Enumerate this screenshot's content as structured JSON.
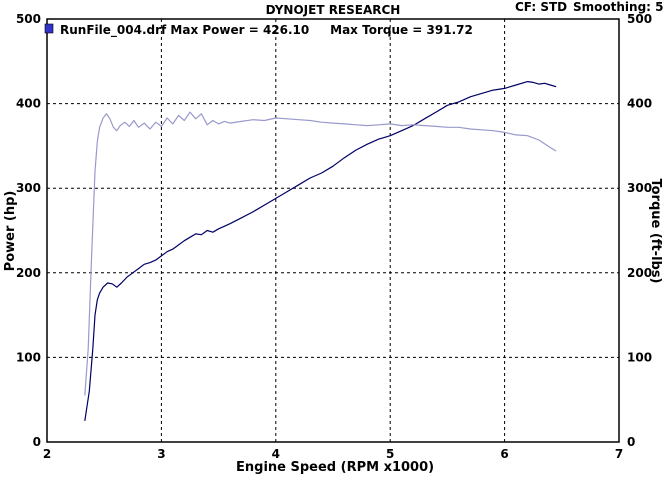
{
  "header": {
    "title": "DYNOJET RESEARCH",
    "cf": "CF: STD",
    "smoothing": "Smoothing: 5"
  },
  "legend": {
    "text": "RunFile_004.drf Max Power = 426.10     Max Torque = 391.72",
    "swatch_color": "#3333cc"
  },
  "chart_data": {
    "type": "line",
    "title": "DYNOJET RESEARCH",
    "xlabel": "Engine Speed (RPM x1000)",
    "ylabel": "Power (hp)",
    "y2label": "Torque (ft-lbs)",
    "xlim": [
      2,
      7
    ],
    "ylim": [
      0,
      500
    ],
    "y2lim": [
      0,
      500
    ],
    "xticks": [
      "2",
      "3",
      "4",
      "5",
      "6",
      "7"
    ],
    "yticks": [
      "0",
      "100",
      "200",
      "300",
      "400",
      "500"
    ],
    "y2ticks": [
      "0",
      "100",
      "200",
      "300",
      "400",
      "500"
    ],
    "grid": true,
    "grid_style": "dashed",
    "series": [
      {
        "color": "#000066",
        "axis": "left",
        "x": [
          2.33,
          2.37,
          2.4,
          2.42,
          2.44,
          2.46,
          2.49,
          2.53,
          2.57,
          2.61,
          2.65,
          2.7,
          2.75,
          2.8,
          2.85,
          2.9,
          2.95,
          3.0,
          3.05,
          3.1,
          3.15,
          3.2,
          3.25,
          3.3,
          3.35,
          3.4,
          3.45,
          3.5,
          3.55,
          3.6,
          3.7,
          3.8,
          3.9,
          4.0,
          4.1,
          4.2,
          4.3,
          4.4,
          4.5,
          4.6,
          4.7,
          4.8,
          4.9,
          5.0,
          5.1,
          5.2,
          5.3,
          5.4,
          5.5,
          5.6,
          5.7,
          5.8,
          5.9,
          6.0,
          6.1,
          6.2,
          6.25,
          6.3,
          6.35,
          6.4,
          6.45
        ],
        "values": [
          25,
          60,
          110,
          150,
          168,
          176,
          183,
          188,
          187,
          183,
          188,
          195,
          200,
          205,
          210,
          212,
          215,
          220,
          225,
          228,
          233,
          238,
          242,
          246,
          245,
          250,
          248,
          252,
          255,
          258,
          265,
          272,
          280,
          288,
          296,
          304,
          312,
          318,
          326,
          336,
          345,
          352,
          358,
          362,
          368,
          374,
          382,
          390,
          398,
          402,
          408,
          412,
          416,
          418,
          422,
          426,
          425,
          423,
          424,
          422,
          420
        ]
      },
      {
        "color": "#9999cc",
        "axis": "right",
        "x": [
          2.33,
          2.36,
          2.39,
          2.42,
          2.44,
          2.46,
          2.49,
          2.52,
          2.55,
          2.58,
          2.61,
          2.64,
          2.68,
          2.72,
          2.76,
          2.8,
          2.85,
          2.9,
          2.95,
          3.0,
          3.05,
          3.1,
          3.15,
          3.2,
          3.25,
          3.3,
          3.35,
          3.4,
          3.45,
          3.5,
          3.55,
          3.6,
          3.7,
          3.8,
          3.9,
          4.0,
          4.1,
          4.2,
          4.3,
          4.4,
          4.5,
          4.6,
          4.7,
          4.8,
          4.9,
          5.0,
          5.1,
          5.2,
          5.3,
          5.4,
          5.5,
          5.6,
          5.7,
          5.8,
          5.9,
          6.0,
          6.1,
          6.2,
          6.3,
          6.4,
          6.45
        ],
        "values": [
          55,
          110,
          220,
          320,
          355,
          372,
          383,
          388,
          382,
          372,
          368,
          374,
          378,
          373,
          380,
          372,
          377,
          370,
          378,
          373,
          383,
          376,
          386,
          380,
          390,
          382,
          388,
          375,
          380,
          376,
          379,
          377,
          379,
          381,
          380,
          383,
          382,
          381,
          380,
          378,
          377,
          376,
          375,
          374,
          375,
          376,
          374,
          375,
          374,
          373,
          372,
          372,
          370,
          369,
          368,
          366,
          363,
          362,
          357,
          348,
          344
        ]
      }
    ]
  }
}
